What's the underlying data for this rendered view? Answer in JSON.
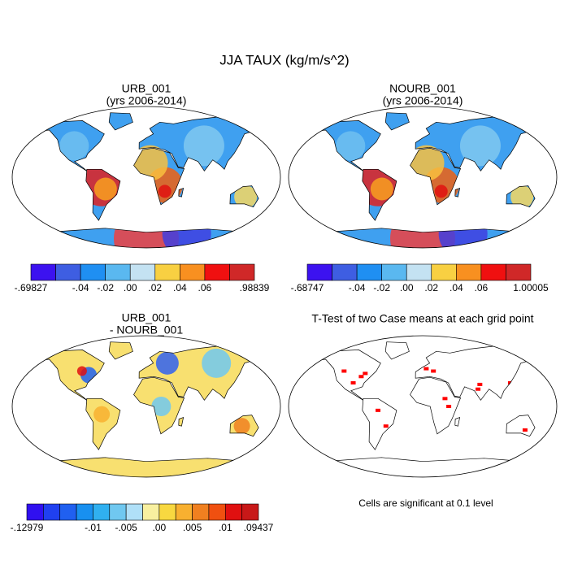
{
  "title": "JJA TAUX (kg/m/s^2)",
  "panels": [
    {
      "title": [
        "URB_001",
        "(yrs 2006-2014)"
      ],
      "colorbar": {
        "colors": [
          "#3c12f0",
          "#3e5ee2",
          "#1f8ff2",
          "#5ab8f0",
          "#c4e2f2",
          "#f8d042",
          "#f89020",
          "#f01010",
          "#d02828"
        ],
        "labels": [
          "-.69827",
          null,
          "-.04",
          "-.02",
          ".00",
          ".02",
          ".04",
          ".06",
          null,
          ".98839"
        ]
      }
    },
    {
      "title": [
        "NOURB_001",
        "(yrs 2006-2014)"
      ],
      "colorbar": {
        "colors": [
          "#3c12f0",
          "#3e5ee2",
          "#1f8ff2",
          "#5ab8f0",
          "#c4e2f2",
          "#f8d042",
          "#f89020",
          "#f01010",
          "#d02828"
        ],
        "labels": [
          "-.68747",
          null,
          "-.04",
          "-.02",
          ".00",
          ".02",
          ".04",
          ".06",
          null,
          "1.00005"
        ]
      }
    },
    {
      "title": [
        "URB_001",
        "- NOURB_001"
      ],
      "colorbar": {
        "colors": [
          "#3010f0",
          "#2040f0",
          "#2060f0",
          "#1890f0",
          "#30b0f0",
          "#70c8f0",
          "#b0e0f8",
          "#f8f0a0",
          "#f8d840",
          "#f8b030",
          "#f08020",
          "#f05010",
          "#e01010",
          "#c81818"
        ],
        "labels": [
          "-.12979",
          null,
          null,
          null,
          "-.01",
          null,
          "-.005",
          null,
          ".00",
          null,
          ".005",
          null,
          ".01",
          null,
          ".09437"
        ]
      }
    },
    {
      "title": [
        "T-Test of two Case means at each grid point"
      ],
      "note": "Cells are significant at 0.1 level"
    }
  ]
}
